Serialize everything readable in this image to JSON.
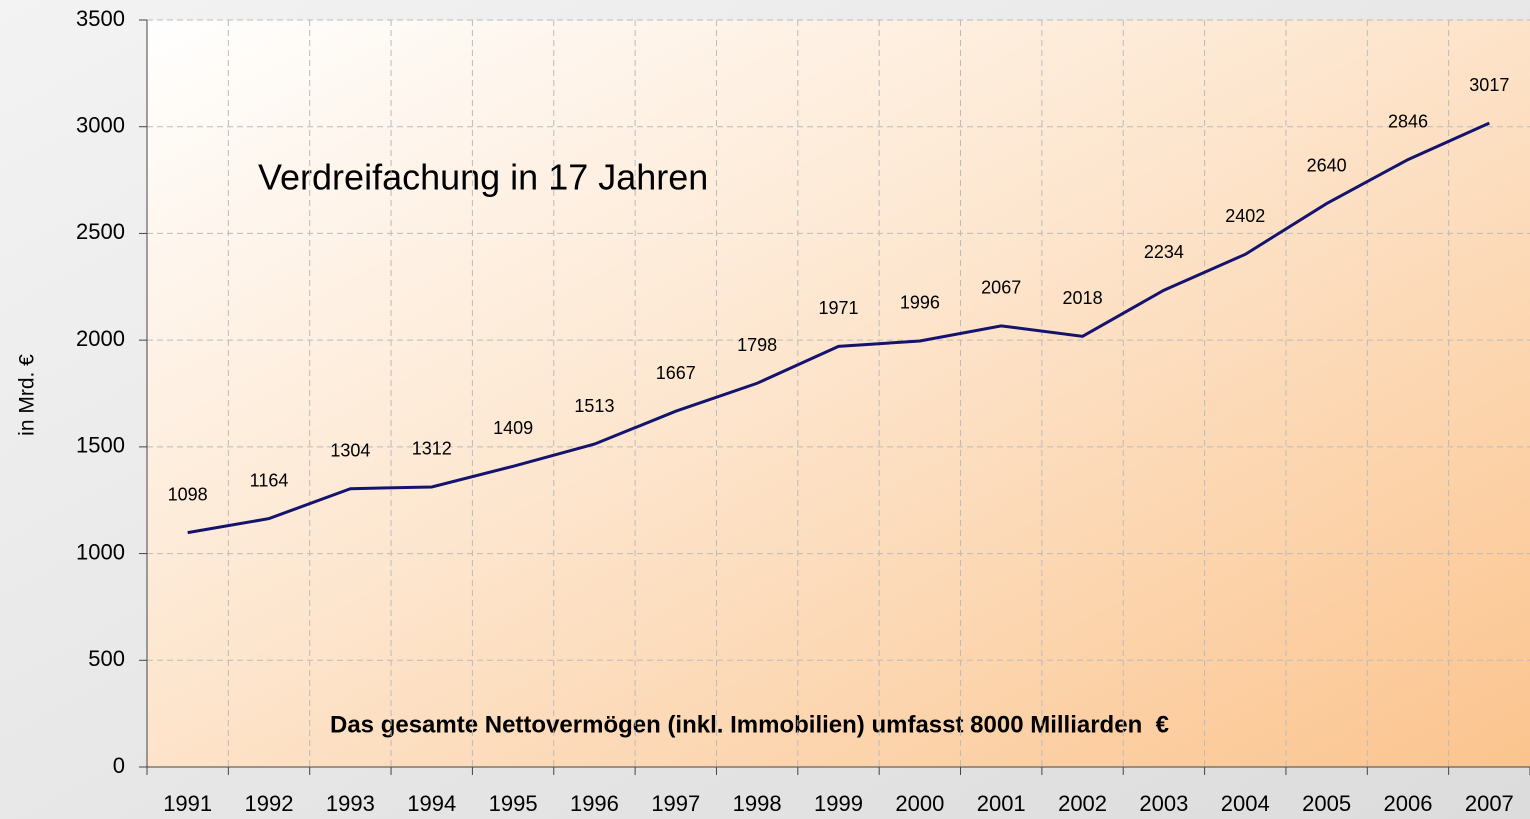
{
  "chart_data": {
    "type": "line",
    "y_label": "in Mrd. €",
    "annotations": [
      "Verdreifachung in 17 Jahren",
      "Das gesamte Nettovermögen (inkl. Immobilien) umfasst 8000 Milliarden  €"
    ],
    "categories": [
      "1991",
      "1992",
      "1993",
      "1994",
      "1995",
      "1996",
      "1997",
      "1998",
      "1999",
      "2000",
      "2001",
      "2002",
      "2003",
      "2004",
      "2005",
      "2006",
      "2007"
    ],
    "series": [
      {
        "color": "#14146e",
        "values": [
          1098,
          1164,
          1304,
          1312,
          1409,
          1513,
          1667,
          1798,
          1971,
          1996,
          2067,
          2018,
          2234,
          2402,
          2640,
          2846,
          3017
        ]
      }
    ],
    "ylim": [
      0,
      3500
    ],
    "yticks": [
      0,
      500,
      1000,
      1500,
      2000,
      2500,
      3000,
      3500
    ],
    "grid": true
  }
}
